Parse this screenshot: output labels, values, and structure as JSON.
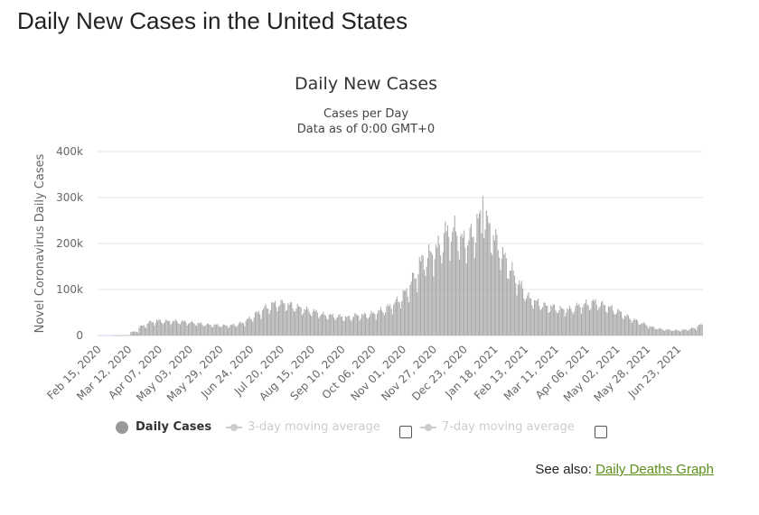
{
  "page": {
    "title": "Daily New Cases in the United States"
  },
  "legend": {
    "daily_cases": "Daily Cases",
    "ma3": "3-day moving average",
    "ma7": "7-day moving average"
  },
  "see_also": {
    "prefix": "See also:",
    "link_text": "Daily Deaths Graph"
  },
  "colors": {
    "bar": "#a6a6a6",
    "grid": "#e6e6e6",
    "text": "#666666",
    "link": "#5a8f1a"
  },
  "chart_data": {
    "type": "bar",
    "title": "Daily New Cases",
    "subtitle_lines": [
      "Cases per Day",
      "Data as of 0:00 GMT+0"
    ],
    "ylabel": "Novel Coronavirus Daily Cases",
    "xlabel": "",
    "ylim": [
      0,
      400000
    ],
    "yticks": [
      0,
      100000,
      200000,
      300000,
      400000
    ],
    "ytick_labels": [
      "0",
      "100k",
      "200k",
      "300k",
      "400k"
    ],
    "grid": true,
    "x_start": "2020-02-15",
    "x_end": "2021-07-14",
    "x_tick_labels": [
      "Feb 15, 2020",
      "Mar 12, 2020",
      "Apr 07, 2020",
      "May 03, 2020",
      "May 29, 2020",
      "Jun 24, 2020",
      "Jul 20, 2020",
      "Aug 15, 2020",
      "Sep 10, 2020",
      "Oct 06, 2020",
      "Nov 01, 2020",
      "Nov 27, 2020",
      "Dec 23, 2020",
      "Jan 18, 2021",
      "Feb 13, 2021",
      "Mar 11, 2021",
      "Apr 06, 2021",
      "May 02, 2021",
      "May 28, 2021",
      "Jun 23, 2021"
    ],
    "weekly_average_series": {
      "name": "Daily Cases",
      "week_start_dates": [
        "2020-02-15",
        "2020-02-22",
        "2020-02-29",
        "2020-03-07",
        "2020-03-14",
        "2020-03-21",
        "2020-03-28",
        "2020-04-04",
        "2020-04-11",
        "2020-04-18",
        "2020-04-25",
        "2020-05-02",
        "2020-05-09",
        "2020-05-16",
        "2020-05-23",
        "2020-05-30",
        "2020-06-06",
        "2020-06-13",
        "2020-06-20",
        "2020-06-27",
        "2020-07-04",
        "2020-07-11",
        "2020-07-18",
        "2020-07-25",
        "2020-08-01",
        "2020-08-08",
        "2020-08-15",
        "2020-08-22",
        "2020-08-29",
        "2020-09-05",
        "2020-09-12",
        "2020-09-19",
        "2020-09-26",
        "2020-10-03",
        "2020-10-10",
        "2020-10-17",
        "2020-10-24",
        "2020-10-31",
        "2020-11-07",
        "2020-11-14",
        "2020-11-21",
        "2020-11-28",
        "2020-12-05",
        "2020-12-12",
        "2020-12-19",
        "2020-12-26",
        "2021-01-02",
        "2021-01-09",
        "2021-01-16",
        "2021-01-23",
        "2021-01-30",
        "2021-02-06",
        "2021-02-13",
        "2021-02-20",
        "2021-02-27",
        "2021-03-06",
        "2021-03-13",
        "2021-03-20",
        "2021-03-27",
        "2021-04-03",
        "2021-04-10",
        "2021-04-17",
        "2021-04-24",
        "2021-05-01",
        "2021-05-08",
        "2021-05-15",
        "2021-05-22",
        "2021-05-29",
        "2021-06-05",
        "2021-06-12",
        "2021-06-19",
        "2021-06-26",
        "2021-07-03",
        "2021-07-10"
      ],
      "values": [
        0,
        0,
        100,
        1000,
        8000,
        20000,
        28000,
        31000,
        30000,
        30000,
        29000,
        27000,
        25000,
        23000,
        22000,
        21000,
        22000,
        26000,
        35000,
        47000,
        58000,
        66000,
        68000,
        64000,
        59000,
        54000,
        50000,
        44000,
        42000,
        40000,
        38000,
        42000,
        43000,
        46000,
        52000,
        60000,
        72000,
        90000,
        120000,
        155000,
        170000,
        185000,
        215000,
        220000,
        200000,
        210000,
        240000,
        235000,
        200000,
        165000,
        135000,
        105000,
        80000,
        70000,
        63000,
        60000,
        55000,
        55000,
        62000,
        66000,
        70000,
        65000,
        58000,
        50000,
        40000,
        32000,
        25000,
        18000,
        14000,
        12000,
        11000,
        12000,
        15000,
        22000
      ],
      "peak_date": "2021-01-08",
      "peak_value": 303000
    }
  }
}
